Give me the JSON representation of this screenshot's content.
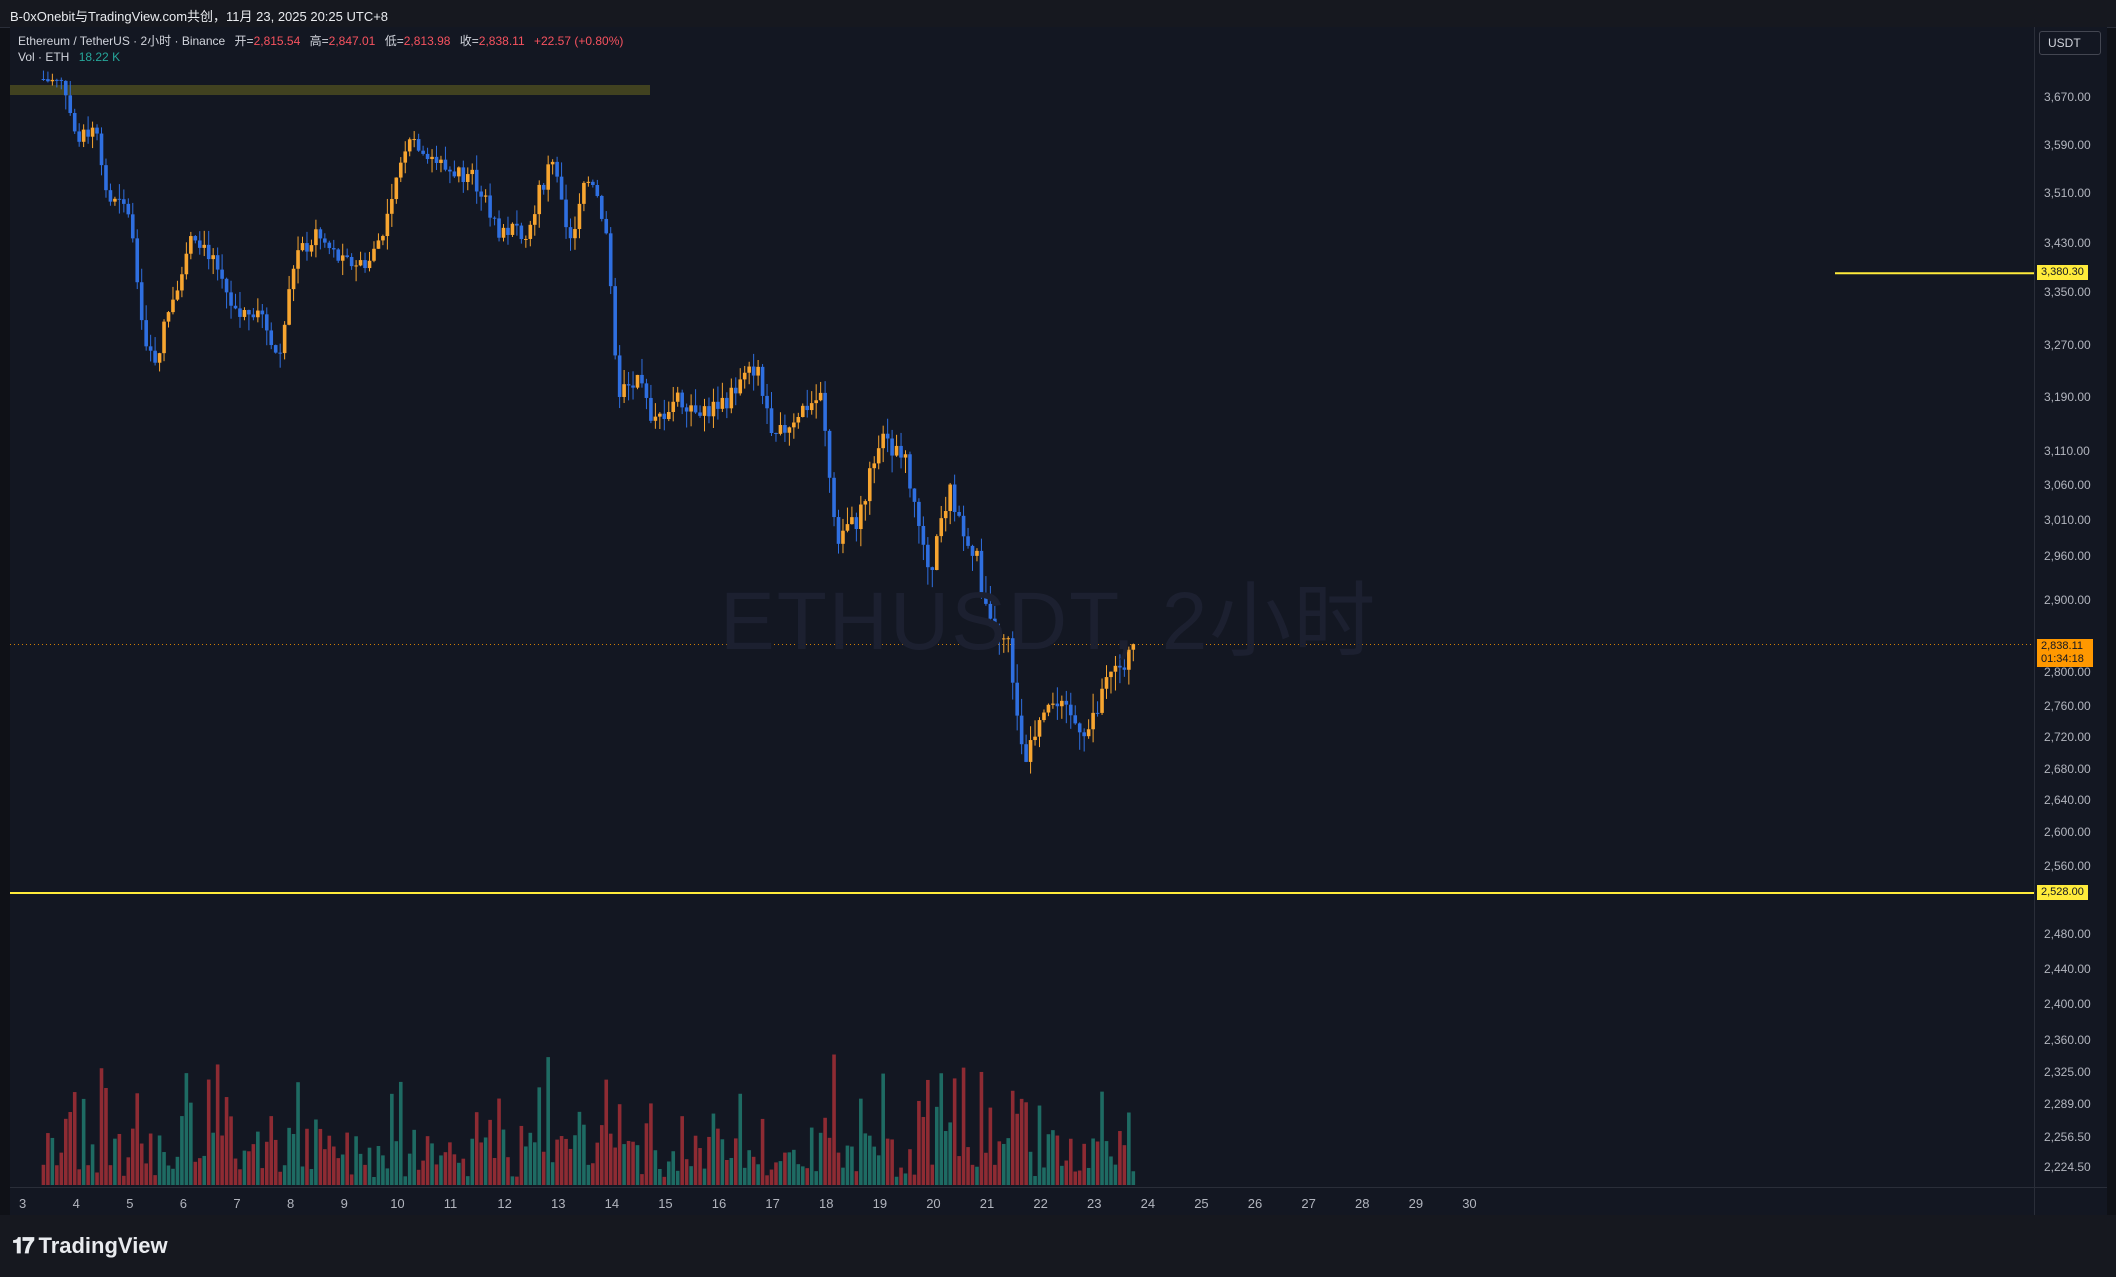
{
  "topbar": {
    "title": "B-0xOnebit与TradingView.com共创，11月 23, 2025 20:25 UTC+8"
  },
  "legend": {
    "symbol": "Ethereum / TetherUS · 2小时 · Binance",
    "open_label": "开=",
    "open": "2,815.54",
    "high_label": "高=",
    "high": "2,847.01",
    "low_label": "低=",
    "low": "2,813.98",
    "close_label": "收=",
    "close": "2,838.11",
    "change": "+22.57 (+0.80%)",
    "vol_label": "Vol · ETH",
    "vol_value": "18.22 K"
  },
  "watermark": "ETHUSDT, 2小时",
  "currency": "USDT",
  "price_axis": {
    "ticks": [
      "3,670.00",
      "3,590.00",
      "3,510.00",
      "3,430.00",
      "3,350.00",
      "3,270.00",
      "3,190.00",
      "3,110.00",
      "3,060.00",
      "3,010.00",
      "2,960.00",
      "2,900.00",
      "2,800.00",
      "2,760.00",
      "2,720.00",
      "2,680.00",
      "2,640.00",
      "2,600.00",
      "2,560.00",
      "2,480.00",
      "2,440.00",
      "2,400.00",
      "2,360.00",
      "2,325.00",
      "2,289.00",
      "2,256.50",
      "2,224.50"
    ],
    "tag_upper": "3,380.30",
    "tag_lower": "2,528.00",
    "current_price": "2,838.11",
    "countdown": "01:34:18"
  },
  "time_axis": [
    "3",
    "4",
    "5",
    "6",
    "7",
    "8",
    "9",
    "10",
    "11",
    "12",
    "13",
    "14",
    "15",
    "16",
    "17",
    "18",
    "19",
    "20",
    "21",
    "22",
    "23",
    "24",
    "25",
    "26",
    "27",
    "28",
    "29",
    "30"
  ],
  "footer": {
    "brand": "TradingView"
  },
  "colors": {
    "up": "#f7a530",
    "down": "#2f6fe0",
    "vol_up": "#1e6b63",
    "vol_down": "#8e2b33",
    "hline": "#ffeb3b"
  },
  "chart_data": {
    "type": "candlestick",
    "title": "Ethereum / TetherUS · 2小时 · Binance",
    "ylim": [
      2190,
      3720
    ],
    "x_days": [
      "3",
      "4",
      "5",
      "6",
      "7",
      "8",
      "9",
      "10",
      "11",
      "12",
      "13",
      "14",
      "15",
      "16",
      "17",
      "18",
      "19",
      "20",
      "21",
      "22",
      "23"
    ],
    "horizontal_lines": [
      3380.3,
      2528.0
    ],
    "resistance_zone": [
      3675,
      3690
    ],
    "anchors": [
      {
        "day": 3.4,
        "price": 3700
      },
      {
        "day": 3.8,
        "price": 3690
      },
      {
        "day": 4.0,
        "price": 3600
      },
      {
        "day": 4.4,
        "price": 3620
      },
      {
        "day": 4.6,
        "price": 3500
      },
      {
        "day": 5.0,
        "price": 3480
      },
      {
        "day": 5.3,
        "price": 3260
      },
      {
        "day": 5.5,
        "price": 3250
      },
      {
        "day": 5.8,
        "price": 3340
      },
      {
        "day": 6.2,
        "price": 3450
      },
      {
        "day": 6.6,
        "price": 3400
      },
      {
        "day": 7.0,
        "price": 3310
      },
      {
        "day": 7.4,
        "price": 3330
      },
      {
        "day": 7.8,
        "price": 3250
      },
      {
        "day": 8.1,
        "price": 3410
      },
      {
        "day": 8.5,
        "price": 3440
      },
      {
        "day": 9.0,
        "price": 3395
      },
      {
        "day": 9.5,
        "price": 3400
      },
      {
        "day": 9.9,
        "price": 3490
      },
      {
        "day": 10.2,
        "price": 3610
      },
      {
        "day": 10.9,
        "price": 3550
      },
      {
        "day": 11.4,
        "price": 3540
      },
      {
        "day": 11.9,
        "price": 3450
      },
      {
        "day": 12.4,
        "price": 3450
      },
      {
        "day": 12.9,
        "price": 3570
      },
      {
        "day": 13.2,
        "price": 3420
      },
      {
        "day": 13.6,
        "price": 3550
      },
      {
        "day": 13.9,
        "price": 3450
      },
      {
        "day": 14.1,
        "price": 3200
      },
      {
        "day": 14.5,
        "price": 3210
      },
      {
        "day": 14.8,
        "price": 3150
      },
      {
        "day": 15.2,
        "price": 3190
      },
      {
        "day": 15.8,
        "price": 3170
      },
      {
        "day": 16.2,
        "price": 3190
      },
      {
        "day": 16.7,
        "price": 3240
      },
      {
        "day": 17.0,
        "price": 3120
      },
      {
        "day": 17.5,
        "price": 3170
      },
      {
        "day": 17.9,
        "price": 3190
      },
      {
        "day": 18.2,
        "price": 2990
      },
      {
        "day": 18.6,
        "price": 3010
      },
      {
        "day": 19.0,
        "price": 3130
      },
      {
        "day": 19.5,
        "price": 3090
      },
      {
        "day": 19.9,
        "price": 2930
      },
      {
        "day": 20.3,
        "price": 3050
      },
      {
        "day": 20.8,
        "price": 2960
      },
      {
        "day": 21.1,
        "price": 2850
      },
      {
        "day": 21.4,
        "price": 2840
      },
      {
        "day": 21.7,
        "price": 2690
      },
      {
        "day": 22.1,
        "price": 2770
      },
      {
        "day": 22.6,
        "price": 2740
      },
      {
        "day": 22.9,
        "price": 2730
      },
      {
        "day": 23.3,
        "price": 2790
      },
      {
        "day": 23.8,
        "price": 2838
      }
    ]
  }
}
